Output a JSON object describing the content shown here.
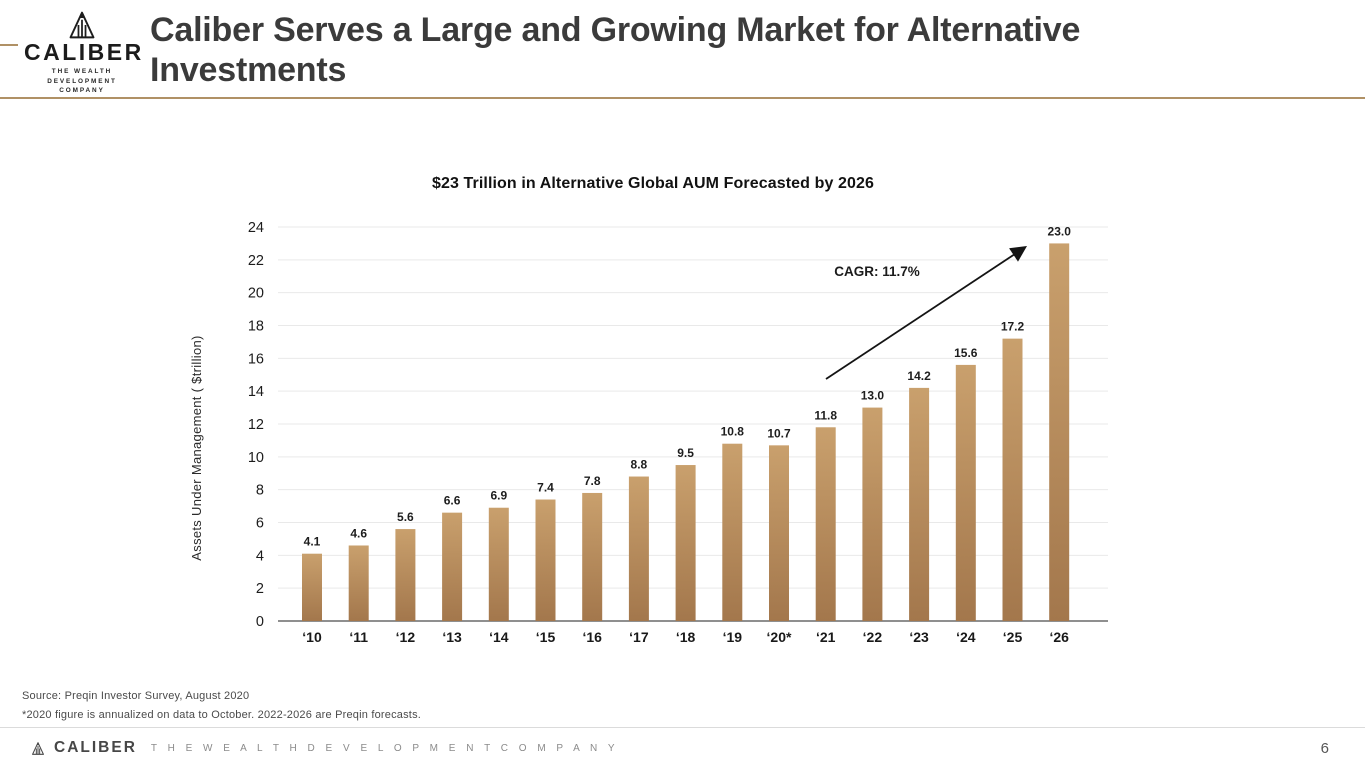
{
  "header": {
    "logo": {
      "brand": "CALIBER",
      "tagline_line1": "THE WEALTH DEVELOPMENT",
      "tagline_line2": "COMPANY"
    },
    "title": "Caliber Serves a Large and Growing Market for Alternative Investments"
  },
  "chart_data": {
    "type": "bar",
    "title": "$23 Trillion in Alternative Global AUM Forecasted by 2026",
    "categories": [
      "‘10",
      "‘11",
      "‘12",
      "‘13",
      "‘14",
      "‘15",
      "‘16",
      "‘17",
      "‘18",
      "‘19",
      "‘20*",
      "‘21",
      "‘22",
      "‘23",
      "‘24",
      "‘25",
      "‘26"
    ],
    "values": [
      4.1,
      4.6,
      5.6,
      6.6,
      6.9,
      7.4,
      7.8,
      8.8,
      9.5,
      10.8,
      10.7,
      11.8,
      13.0,
      14.2,
      15.6,
      17.2,
      23.0
    ],
    "value_labels": [
      "4.1",
      "4.6",
      "5.6",
      "6.6",
      "6.9",
      "7.4",
      "7.8",
      "8.8",
      "9.5",
      "10.8",
      "10.7",
      "11.8",
      "13.0",
      "14.2",
      "15.6",
      "17.2",
      "23.0"
    ],
    "xlabel": "",
    "ylabel": "Assets Under Management ( $trillion)",
    "ylim": [
      0,
      24
    ],
    "ytick_step": 2,
    "grid": true,
    "legend_position": "none",
    "annotation": {
      "text": "CAGR: 11.7%"
    },
    "colors": {
      "bar_top": "#c9a06d",
      "bar_bottom": "#a3774c",
      "grid": "#e9e9e9",
      "axis": "#8f8f8f",
      "arrow": "#141414",
      "accent": "#b09165",
      "label": "#1d1d1d"
    }
  },
  "footnotes": {
    "source": "Source: Preqin Investor Survey, August 2020",
    "note": "*2020 figure is annualized on data to October. 2022-2026 are Preqin forecasts."
  },
  "footer": {
    "brand": "CALIBER",
    "tagline": "T H E   W E A L T H   D E V E L O P M E N T   C O M P A N Y",
    "page_number": "6"
  }
}
